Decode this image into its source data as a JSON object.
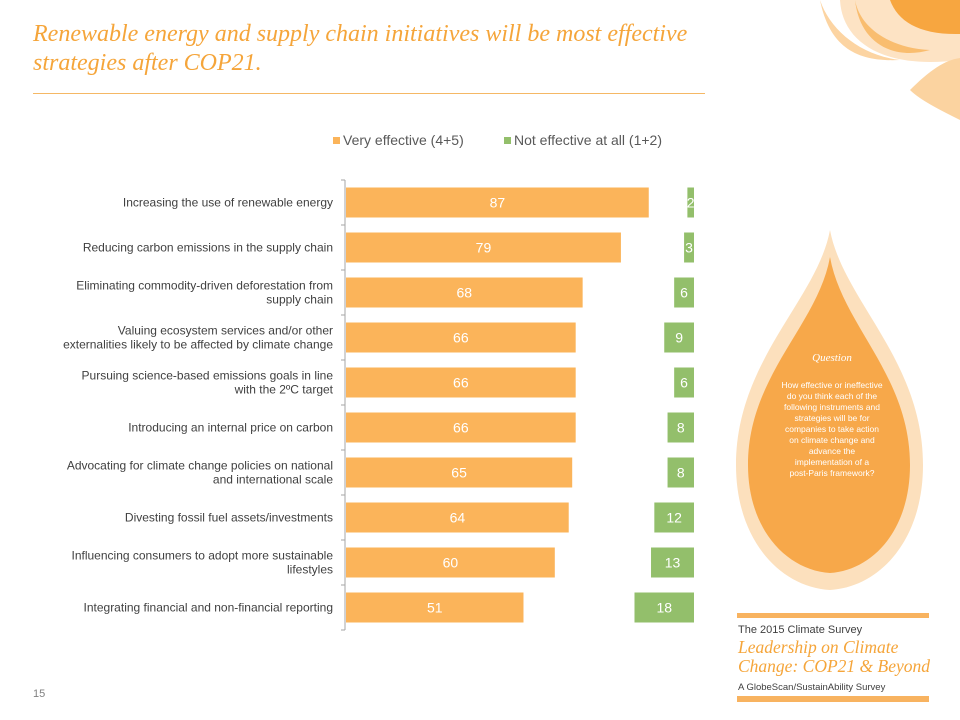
{
  "title": "Renewable energy and supply chain initiatives will be most effective strategies after COP21.",
  "colors": {
    "accent": "#f5a53a",
    "very_effective": "#fbb45a",
    "not_effective": "#93bf6b",
    "drop_outer": "#fce0bd",
    "drop_inner": "#f7a84a"
  },
  "chart_data": {
    "type": "bar",
    "orientation": "horizontal",
    "legend_position": "top",
    "categories": [
      [
        "Increasing the use of renewable energy"
      ],
      [
        "Reducing carbon emissions in the supply chain"
      ],
      [
        "Eliminating commodity-driven deforestation from",
        "supply chain"
      ],
      [
        "Valuing ecosystem services and/or other",
        "externalities likely to be affected by climate change"
      ],
      [
        "Pursuing science-based emissions goals in line",
        "with the 2ºC target"
      ],
      [
        "Introducing an internal price on carbon"
      ],
      [
        "Advocating for climate change policies on national",
        "and international scale"
      ],
      [
        "Divesting fossil fuel assets/investments"
      ],
      [
        "Influencing consumers to adopt more sustainable",
        "lifestyles"
      ],
      [
        "Integrating financial and non-financial reporting"
      ]
    ],
    "series": [
      {
        "name": "Very effective (4+5)",
        "color": "#fbb45a",
        "values": [
          87,
          79,
          68,
          66,
          66,
          66,
          65,
          64,
          60,
          51
        ]
      },
      {
        "name": "Not effective at all (1+2)",
        "color": "#93bf6b",
        "values": [
          2,
          3,
          6,
          9,
          6,
          8,
          8,
          12,
          13,
          18
        ]
      }
    ]
  },
  "sidebar": {
    "question_heading": "Question",
    "question_lines": [
      "How effective or ineffective",
      "do you think each of the",
      "following instruments and",
      "strategies will be for",
      "companies to take action",
      "on climate change and",
      "advance the",
      "implementation  of a",
      "post-Paris framework?"
    ]
  },
  "branding": {
    "line1": "The 2015 Climate Survey",
    "line2": "Leadership on Climate Change: COP21 & Beyond",
    "line3": "A GlobeScan/SustainAbility Survey"
  },
  "page_number": "15"
}
